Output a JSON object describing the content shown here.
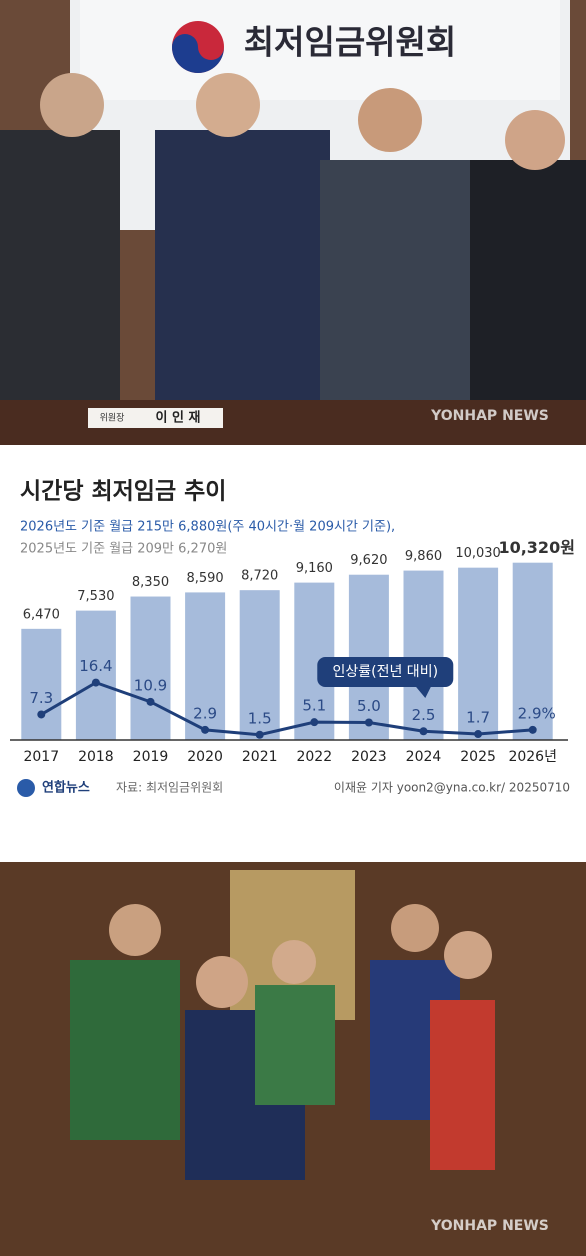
{
  "photo_top": {
    "sign": "최저임금위원회",
    "nameplate_title": "위원장",
    "nameplate_name": "이 인 재",
    "watermark": "YONHAP NEWS"
  },
  "chart_data": {
    "type": "bar",
    "title": "시간당 최저임금 추이",
    "subtitle": [
      "2026년도 기준 월급 215만 6,880원(주 40시간·월 209시간 기준),",
      "2025년도 기준 월급 209만 6,270원"
    ],
    "categories": [
      "2017",
      "2018",
      "2019",
      "2020",
      "2021",
      "2022",
      "2023",
      "2024",
      "2025",
      "2026년"
    ],
    "series": [
      {
        "type": "bar",
        "color": "#a6bbdb",
        "values": [
          6470,
          7530,
          8350,
          8590,
          8720,
          9160,
          9620,
          9860,
          10030,
          10320
        ],
        "value_labels": [
          "6,470",
          "7,530",
          "8,350",
          "8,590",
          "8,720",
          "9,160",
          "9,620",
          "9,860",
          "10,030",
          "10,320원"
        ]
      },
      {
        "type": "line",
        "axis": "y2",
        "color": "#1f3f7a",
        "values": [
          7.3,
          16.4,
          10.9,
          2.9,
          1.5,
          5.1,
          5.0,
          2.5,
          1.7,
          2.9
        ],
        "value_labels": [
          "7.3",
          "16.4",
          "10.9",
          "2.9",
          "1.5",
          "5.1",
          "5.0",
          "2.5",
          "1.7",
          "2.9%"
        ]
      }
    ],
    "ylim": [
      0,
      11000
    ],
    "y2lim": [
      0,
      54
    ],
    "annotation": "인상률(전년 대비)",
    "logo": "연합뉴스",
    "source": "자료: 최저임금위원회",
    "credit": "이재윤 기자 yoon2@yna.co.kr/ 20250710"
  },
  "photo_bottom": {
    "watermark": "YONHAP NEWS"
  }
}
